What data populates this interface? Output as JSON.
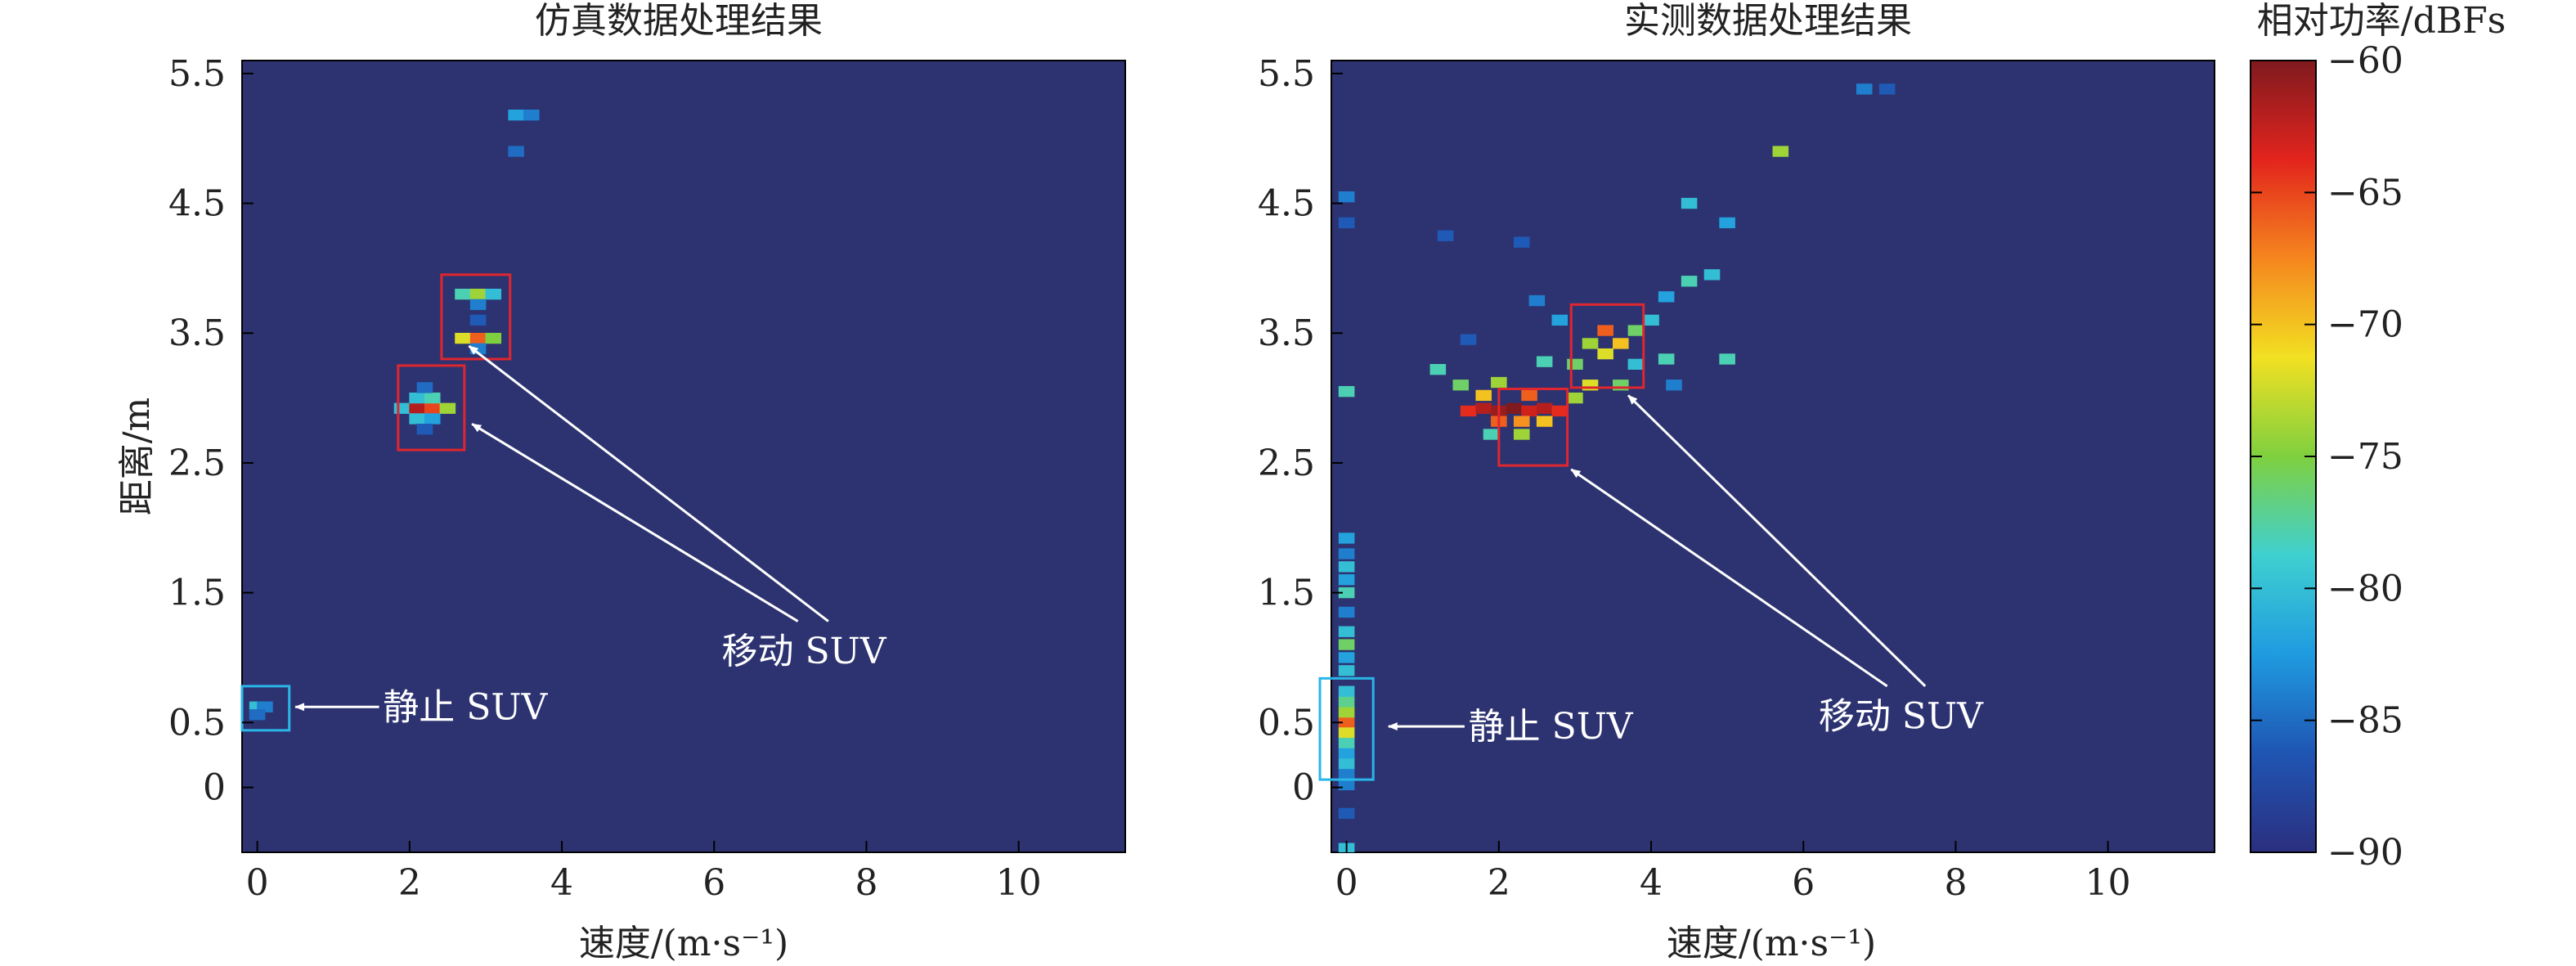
{
  "chart_data": [
    {
      "type": "heatmap",
      "title": "仿真数据处理结果",
      "xlabel": "速度/(m·s⁻¹)",
      "ylabel": "距离/m",
      "xlim": [
        -0.2,
        11.4
      ],
      "ylim": [
        -0.5,
        5.6
      ],
      "xticks": [
        "0",
        "2",
        "4",
        "6",
        "8",
        "10"
      ],
      "yticks": [
        "0",
        "0.5",
        "1.5",
        "2.5",
        "3.5",
        "4.5",
        "5.5"
      ],
      "background_dbfs": -90,
      "cells": [
        {
          "v": 0.0,
          "r": 0.62,
          "p": -80
        },
        {
          "v": 0.1,
          "r": 0.62,
          "p": -84
        },
        {
          "v": 0.0,
          "r": 0.56,
          "p": -85
        },
        {
          "v": 3.4,
          "r": 5.18,
          "p": -82
        },
        {
          "v": 3.6,
          "r": 5.18,
          "p": -84
        },
        {
          "v": 3.4,
          "r": 4.9,
          "p": -85
        },
        {
          "v": 1.9,
          "r": 2.92,
          "p": -80
        },
        {
          "v": 2.1,
          "r": 2.92,
          "p": -62
        },
        {
          "v": 2.3,
          "r": 2.92,
          "p": -65
        },
        {
          "v": 2.5,
          "r": 2.92,
          "p": -74
        },
        {
          "v": 2.1,
          "r": 3.0,
          "p": -80
        },
        {
          "v": 2.3,
          "r": 3.0,
          "p": -78
        },
        {
          "v": 2.1,
          "r": 2.84,
          "p": -80
        },
        {
          "v": 2.3,
          "r": 2.84,
          "p": -82
        },
        {
          "v": 2.2,
          "r": 3.08,
          "p": -85
        },
        {
          "v": 2.2,
          "r": 2.76,
          "p": -86
        },
        {
          "v": 2.7,
          "r": 3.8,
          "p": -78
        },
        {
          "v": 2.9,
          "r": 3.8,
          "p": -74
        },
        {
          "v": 3.1,
          "r": 3.8,
          "p": -80
        },
        {
          "v": 2.9,
          "r": 3.72,
          "p": -84
        },
        {
          "v": 2.9,
          "r": 3.6,
          "p": -86
        },
        {
          "v": 2.7,
          "r": 3.46,
          "p": -72
        },
        {
          "v": 2.9,
          "r": 3.46,
          "p": -66
        },
        {
          "v": 3.1,
          "r": 3.46,
          "p": -75
        },
        {
          "v": 2.9,
          "r": 3.38,
          "p": -84
        }
      ],
      "boxes": [
        {
          "color": "#29b6e8",
          "v0": -0.2,
          "v1": 0.42,
          "r0": 0.44,
          "r1": 0.78
        },
        {
          "color": "#e0262e",
          "v0": 1.85,
          "v1": 2.72,
          "r0": 2.6,
          "r1": 3.25
        },
        {
          "color": "#e0262e",
          "v0": 2.42,
          "v1": 3.32,
          "r0": 3.3,
          "r1": 3.95
        }
      ],
      "annotations": [
        {
          "text": "静止 SUV",
          "head_v": 0.5,
          "head_r": 0.62,
          "tail_v": 1.6,
          "tail_r": 0.62,
          "text_v": 1.65,
          "text_r": 0.62
        },
        {
          "text": "移动 SUV",
          "head_v": 2.78,
          "head_r": 3.4,
          "tail_v": 7.5,
          "tail_r": 1.28,
          "text_v": 6.1,
          "text_r": 1.05
        },
        {
          "text": "",
          "head_v": 2.82,
          "head_r": 2.8,
          "tail_v": 7.1,
          "tail_r": 1.28
        }
      ]
    },
    {
      "type": "heatmap",
      "title": "实测数据处理结果",
      "xlabel": "速度/(m·s⁻¹)",
      "ylabel": "",
      "xlim": [
        -0.2,
        11.4
      ],
      "ylim": [
        -0.5,
        5.6
      ],
      "xticks": [
        "0",
        "2",
        "4",
        "6",
        "8",
        "10"
      ],
      "yticks": [
        "0",
        "0.5",
        "1.5",
        "2.5",
        "3.5",
        "4.5",
        "5.5"
      ],
      "background_dbfs": -90,
      "cells": [
        {
          "v": 0.0,
          "r": 0.5,
          "p": -66
        },
        {
          "v": 0.0,
          "r": 0.42,
          "p": -72
        },
        {
          "v": 0.0,
          "r": 0.58,
          "p": -74
        },
        {
          "v": 0.0,
          "r": 0.34,
          "p": -78
        },
        {
          "v": 0.0,
          "r": 0.66,
          "p": -77
        },
        {
          "v": 0.0,
          "r": 0.26,
          "p": -82
        },
        {
          "v": 0.0,
          "r": 0.74,
          "p": -80
        },
        {
          "v": 0.0,
          "r": 0.18,
          "p": -80
        },
        {
          "v": 0.0,
          "r": 0.1,
          "p": -84
        },
        {
          "v": 0.0,
          "r": 0.9,
          "p": -80
        },
        {
          "v": 0.0,
          "r": 1.0,
          "p": -82
        },
        {
          "v": 0.0,
          "r": 1.1,
          "p": -76
        },
        {
          "v": 0.0,
          "r": 1.2,
          "p": -80
        },
        {
          "v": 0.0,
          "r": 1.35,
          "p": -84
        },
        {
          "v": 0.0,
          "r": 1.5,
          "p": -78
        },
        {
          "v": 0.0,
          "r": 1.6,
          "p": -82
        },
        {
          "v": 0.0,
          "r": 1.7,
          "p": -80
        },
        {
          "v": 0.0,
          "r": 1.8,
          "p": -84
        },
        {
          "v": 0.0,
          "r": 1.92,
          "p": -82
        },
        {
          "v": 0.0,
          "r": 3.05,
          "p": -78
        },
        {
          "v": 0.0,
          "r": 4.55,
          "p": -84
        },
        {
          "v": 0.0,
          "r": 4.35,
          "p": -86
        },
        {
          "v": 0.0,
          "r": 0.02,
          "p": -84
        },
        {
          "v": 0.0,
          "r": -0.2,
          "p": -86
        },
        {
          "v": 0.0,
          "r": -0.47,
          "p": -80
        },
        {
          "v": 1.6,
          "r": 2.9,
          "p": -64
        },
        {
          "v": 1.8,
          "r": 2.92,
          "p": -62
        },
        {
          "v": 2.0,
          "r": 2.9,
          "p": -61
        },
        {
          "v": 2.2,
          "r": 2.92,
          "p": -60
        },
        {
          "v": 2.4,
          "r": 2.9,
          "p": -63
        },
        {
          "v": 2.6,
          "r": 2.92,
          "p": -62
        },
        {
          "v": 2.8,
          "r": 2.9,
          "p": -64
        },
        {
          "v": 2.0,
          "r": 2.82,
          "p": -66
        },
        {
          "v": 2.3,
          "r": 2.82,
          "p": -68
        },
        {
          "v": 2.6,
          "r": 2.82,
          "p": -70
        },
        {
          "v": 1.8,
          "r": 3.02,
          "p": -70
        },
        {
          "v": 2.4,
          "r": 3.02,
          "p": -66
        },
        {
          "v": 3.0,
          "r": 3.0,
          "p": -74
        },
        {
          "v": 1.5,
          "r": 3.1,
          "p": -76
        },
        {
          "v": 2.0,
          "r": 3.12,
          "p": -74
        },
        {
          "v": 3.2,
          "r": 3.1,
          "p": -72
        },
        {
          "v": 3.6,
          "r": 3.1,
          "p": -76
        },
        {
          "v": 3.4,
          "r": 3.52,
          "p": -66
        },
        {
          "v": 3.6,
          "r": 3.42,
          "p": -70
        },
        {
          "v": 3.2,
          "r": 3.42,
          "p": -74
        },
        {
          "v": 3.4,
          "r": 3.34,
          "p": -72
        },
        {
          "v": 3.8,
          "r": 3.52,
          "p": -76
        },
        {
          "v": 3.0,
          "r": 3.26,
          "p": -76
        },
        {
          "v": 3.8,
          "r": 3.26,
          "p": -80
        },
        {
          "v": 4.2,
          "r": 3.3,
          "p": -78
        },
        {
          "v": 4.0,
          "r": 3.6,
          "p": -80
        },
        {
          "v": 4.2,
          "r": 3.78,
          "p": -82
        },
        {
          "v": 1.2,
          "r": 3.22,
          "p": -78
        },
        {
          "v": 2.6,
          "r": 3.28,
          "p": -78
        },
        {
          "v": 4.5,
          "r": 3.9,
          "p": -78
        },
        {
          "v": 4.8,
          "r": 3.95,
          "p": -80
        },
        {
          "v": 4.5,
          "r": 4.5,
          "p": -80
        },
        {
          "v": 5.0,
          "r": 4.35,
          "p": -82
        },
        {
          "v": 5.0,
          "r": 3.3,
          "p": -78
        },
        {
          "v": 4.3,
          "r": 3.1,
          "p": -84
        },
        {
          "v": 5.7,
          "r": 4.9,
          "p": -74
        },
        {
          "v": 6.8,
          "r": 5.38,
          "p": -84
        },
        {
          "v": 7.1,
          "r": 5.38,
          "p": -86
        },
        {
          "v": 2.8,
          "r": 3.6,
          "p": -82
        },
        {
          "v": 1.6,
          "r": 3.45,
          "p": -86
        },
        {
          "v": 2.3,
          "r": 4.2,
          "p": -86
        },
        {
          "v": 1.3,
          "r": 4.25,
          "p": -86
        },
        {
          "v": 2.5,
          "r": 3.75,
          "p": -84
        },
        {
          "v": 1.9,
          "r": 2.72,
          "p": -78
        },
        {
          "v": 2.3,
          "r": 2.72,
          "p": -74
        }
      ],
      "boxes": [
        {
          "color": "#29b6e8",
          "v0": -0.35,
          "v1": 0.35,
          "r0": 0.06,
          "r1": 0.84
        },
        {
          "color": "#e0262e",
          "v0": 2.0,
          "v1": 2.9,
          "r0": 2.48,
          "r1": 3.07
        },
        {
          "color": "#e0262e",
          "v0": 2.95,
          "v1": 3.9,
          "r0": 3.08,
          "r1": 3.72
        }
      ],
      "annotations": [
        {
          "text": "静止 SUV",
          "head_v": 0.55,
          "head_r": 0.47,
          "tail_v": 1.55,
          "tail_r": 0.47,
          "text_v": 1.6,
          "text_r": 0.47
        },
        {
          "text": "移动 SUV",
          "head_v": 3.7,
          "head_r": 3.02,
          "tail_v": 7.6,
          "tail_r": 0.78,
          "text_v": 6.2,
          "text_r": 0.55
        },
        {
          "text": "",
          "head_v": 2.95,
          "head_r": 2.45,
          "tail_v": 7.1,
          "tail_r": 0.78
        }
      ]
    }
  ],
  "colorbar": {
    "label": "相对功率/dBFs",
    "min": -90,
    "max": -60,
    "ticks": [
      "−60",
      "−65",
      "−70",
      "−75",
      "−80",
      "−85",
      "−90"
    ],
    "tick_values": [
      -60,
      -65,
      -70,
      -75,
      -80,
      -85,
      -90
    ],
    "colormap": "jet",
    "colormap_stops": [
      "#2b2f7f",
      "#1f55b3",
      "#1f9be0",
      "#3fd0d0",
      "#7fd03f",
      "#f2e022",
      "#f5861e",
      "#e3241d",
      "#7f1a1f"
    ]
  }
}
